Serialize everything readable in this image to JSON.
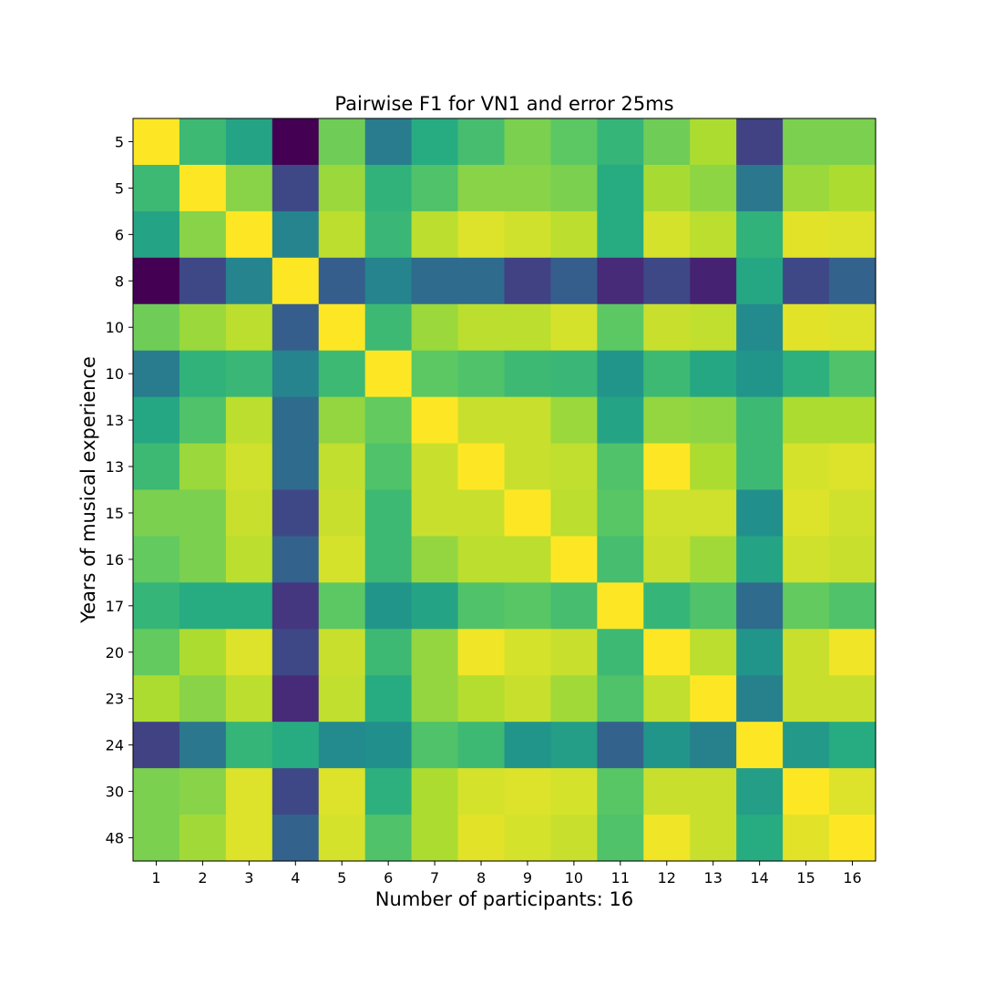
{
  "chart_data": {
    "type": "heatmap",
    "title": "Pairwise F1 for VN1 and error 25ms",
    "xlabel": "Number of participants: 16",
    "ylabel": "Years of musical experience",
    "x_categories": [
      "1",
      "2",
      "3",
      "4",
      "5",
      "6",
      "7",
      "8",
      "9",
      "10",
      "11",
      "12",
      "13",
      "14",
      "15",
      "16"
    ],
    "y_categories": [
      "5",
      "5",
      "6",
      "8",
      "10",
      "10",
      "13",
      "13",
      "15",
      "16",
      "17",
      "20",
      "23",
      "24",
      "30",
      "48"
    ],
    "colormap": "viridis",
    "value_range": [
      0,
      1
    ],
    "grid": false,
    "values": [
      [
        1.0,
        0.68,
        0.58,
        0.0,
        0.78,
        0.42,
        0.62,
        0.7,
        0.8,
        0.75,
        0.66,
        0.78,
        0.88,
        0.2,
        0.8,
        0.8
      ],
      [
        0.68,
        1.0,
        0.82,
        0.22,
        0.85,
        0.65,
        0.72,
        0.82,
        0.82,
        0.8,
        0.62,
        0.87,
        0.83,
        0.4,
        0.85,
        0.88
      ],
      [
        0.58,
        0.82,
        1.0,
        0.45,
        0.9,
        0.67,
        0.9,
        0.95,
        0.93,
        0.9,
        0.62,
        0.94,
        0.9,
        0.65,
        0.96,
        0.95
      ],
      [
        0.0,
        0.22,
        0.45,
        1.0,
        0.3,
        0.45,
        0.35,
        0.35,
        0.2,
        0.3,
        0.12,
        0.22,
        0.1,
        0.6,
        0.22,
        0.32
      ],
      [
        0.78,
        0.85,
        0.9,
        0.3,
        1.0,
        0.68,
        0.85,
        0.9,
        0.9,
        0.94,
        0.75,
        0.92,
        0.91,
        0.48,
        0.96,
        0.95
      ],
      [
        0.42,
        0.65,
        0.67,
        0.45,
        0.68,
        1.0,
        0.75,
        0.72,
        0.68,
        0.67,
        0.52,
        0.68,
        0.6,
        0.52,
        0.64,
        0.72
      ],
      [
        0.6,
        0.72,
        0.9,
        0.35,
        0.84,
        0.76,
        1.0,
        0.92,
        0.92,
        0.85,
        0.58,
        0.84,
        0.83,
        0.68,
        0.88,
        0.88
      ],
      [
        0.68,
        0.85,
        0.93,
        0.35,
        0.91,
        0.72,
        0.92,
        1.0,
        0.92,
        0.91,
        0.72,
        1.0,
        0.88,
        0.68,
        0.94,
        0.95
      ],
      [
        0.8,
        0.8,
        0.92,
        0.22,
        0.92,
        0.68,
        0.92,
        0.92,
        1.0,
        0.9,
        0.74,
        0.93,
        0.93,
        0.5,
        0.95,
        0.93
      ],
      [
        0.76,
        0.8,
        0.9,
        0.32,
        0.94,
        0.68,
        0.84,
        0.9,
        0.9,
        1.0,
        0.7,
        0.92,
        0.86,
        0.58,
        0.93,
        0.92
      ],
      [
        0.66,
        0.62,
        0.62,
        0.16,
        0.75,
        0.52,
        0.58,
        0.72,
        0.74,
        0.7,
        1.0,
        0.66,
        0.72,
        0.35,
        0.76,
        0.72
      ],
      [
        0.76,
        0.88,
        0.95,
        0.22,
        0.92,
        0.68,
        0.84,
        0.98,
        0.94,
        0.92,
        0.68,
        1.0,
        0.9,
        0.52,
        0.92,
        0.98
      ],
      [
        0.88,
        0.82,
        0.9,
        0.12,
        0.91,
        0.62,
        0.84,
        0.89,
        0.92,
        0.86,
        0.72,
        0.91,
        1.0,
        0.44,
        0.92,
        0.92
      ],
      [
        0.2,
        0.4,
        0.66,
        0.62,
        0.48,
        0.5,
        0.72,
        0.68,
        0.52,
        0.56,
        0.32,
        0.52,
        0.44,
        1.0,
        0.54,
        0.62
      ],
      [
        0.8,
        0.82,
        0.95,
        0.22,
        0.95,
        0.64,
        0.88,
        0.94,
        0.95,
        0.94,
        0.74,
        0.92,
        0.92,
        0.56,
        1.0,
        0.95
      ],
      [
        0.8,
        0.86,
        0.95,
        0.32,
        0.94,
        0.72,
        0.88,
        0.96,
        0.94,
        0.92,
        0.72,
        0.98,
        0.92,
        0.62,
        0.96,
        1.0
      ]
    ]
  }
}
